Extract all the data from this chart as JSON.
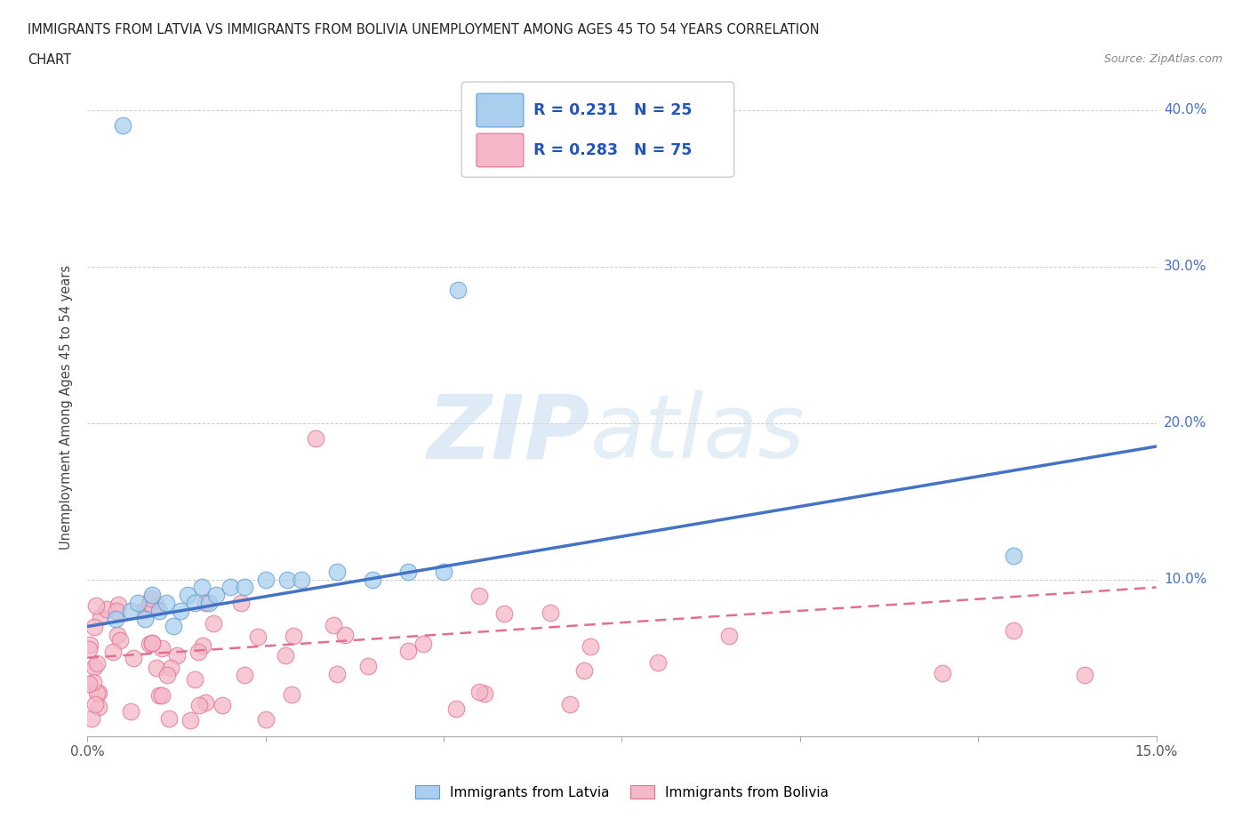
{
  "title_line1": "IMMIGRANTS FROM LATVIA VS IMMIGRANTS FROM BOLIVIA UNEMPLOYMENT AMONG AGES 45 TO 54 YEARS CORRELATION",
  "title_line2": "CHART",
  "source": "Source: ZipAtlas.com",
  "ylabel": "Unemployment Among Ages 45 to 54 years",
  "xlim": [
    0.0,
    0.15
  ],
  "ylim": [
    0.0,
    0.42
  ],
  "x_ticks": [
    0.0,
    0.025,
    0.05,
    0.075,
    0.1,
    0.125,
    0.15
  ],
  "y_ticks": [
    0.0,
    0.1,
    0.2,
    0.3,
    0.4
  ],
  "y_tick_labels": [
    "",
    "10.0%",
    "20.0%",
    "30.0%",
    "40.0%"
  ],
  "latvia_R": 0.231,
  "latvia_N": 25,
  "bolivia_R": 0.283,
  "bolivia_N": 75,
  "latvia_color": "#aacfee",
  "latvia_edge_color": "#5b9bd5",
  "latvia_line_color": "#4472c4",
  "bolivia_color": "#f4b8c8",
  "bolivia_edge_color": "#e07090",
  "bolivia_line_color": "#e07090",
  "lat_line_x0": 0.0,
  "lat_line_y0": 0.07,
  "lat_line_x1": 0.15,
  "lat_line_y1": 0.185,
  "bol_line_x0": 0.0,
  "bol_line_y0": 0.05,
  "bol_line_x1": 0.15,
  "bol_line_y1": 0.095
}
